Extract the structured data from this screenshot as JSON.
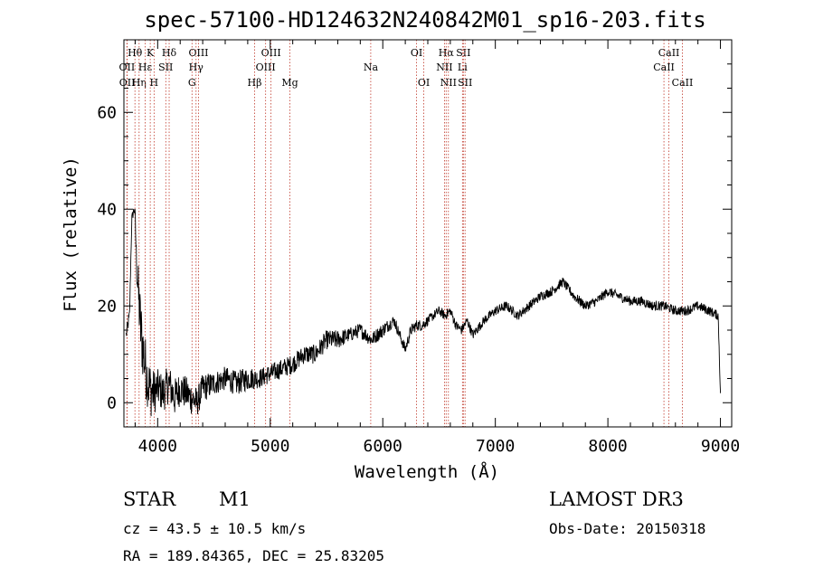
{
  "chart_data": {
    "type": "line",
    "title": "spec-57100-HD124632N240842M01_sp16-203.fits",
    "xlabel": "Wavelength (Å)",
    "ylabel": "Flux (relative)",
    "xlim": [
      3700,
      9100
    ],
    "ylim": [
      -5,
      75
    ],
    "xticks": [
      4000,
      5000,
      6000,
      7000,
      8000,
      9000
    ],
    "yticks": [
      0,
      20,
      40,
      60
    ],
    "series": [
      {
        "name": "flux",
        "x": [
          3720,
          3750,
          3770,
          3790,
          3800,
          3810,
          3830,
          3850,
          3870,
          3900,
          3930,
          3960,
          4000,
          4050,
          4100,
          4150,
          4200,
          4250,
          4300,
          4350,
          4400,
          4500,
          4600,
          4700,
          4800,
          4900,
          5000,
          5100,
          5200,
          5300,
          5400,
          5500,
          5600,
          5700,
          5800,
          5900,
          6000,
          6100,
          6150,
          6200,
          6250,
          6300,
          6350,
          6400,
          6450,
          6500,
          6550,
          6600,
          6650,
          6700,
          6750,
          6800,
          6900,
          7000,
          7100,
          7200,
          7300,
          7400,
          7500,
          7600,
          7700,
          7800,
          7900,
          8000,
          8100,
          8200,
          8300,
          8400,
          8500,
          8600,
          8700,
          8800,
          8900,
          8980,
          9000
        ],
        "y": [
          14,
          18,
          38,
          40,
          39,
          30,
          22,
          15,
          11,
          6,
          3,
          2,
          3,
          2,
          4,
          1,
          3,
          2,
          1,
          0,
          3,
          4,
          5,
          4,
          5,
          5,
          6,
          7,
          8,
          10,
          10,
          13,
          13,
          14,
          15,
          13,
          15,
          17,
          14,
          11,
          15,
          16,
          16,
          17,
          18,
          19,
          18,
          19,
          16,
          15,
          17,
          14,
          17,
          19,
          20,
          18,
          20,
          22,
          23,
          25,
          22,
          20,
          21,
          23,
          22,
          21,
          21,
          20,
          20,
          19,
          19,
          20,
          19,
          18,
          2
        ],
        "noise": [
          1.5,
          1.5,
          1,
          1,
          1,
          4,
          6,
          7,
          7,
          6,
          6,
          5,
          4,
          4,
          4,
          4,
          3.5,
          3.5,
          3.5,
          3,
          3,
          2.5,
          2.5,
          2.5,
          2.5,
          2,
          2,
          2,
          2,
          2,
          2,
          2,
          2,
          1.5,
          1.5,
          1.5,
          1.5,
          1.2,
          1.2,
          1.2,
          1.2,
          1.2,
          1.2,
          1,
          1,
          1,
          1,
          1,
          1,
          1,
          1,
          1,
          1,
          1,
          1,
          1,
          1,
          1,
          1,
          1,
          1,
          1,
          1,
          1,
          1,
          1,
          1,
          1,
          1,
          1,
          1,
          1,
          1,
          1,
          1
        ]
      }
    ],
    "spectral_lines": [
      {
        "label": "Hθ",
        "wavelength": 3798,
        "row": 0
      },
      {
        "label": "OII",
        "wavelength": 3727,
        "row": 1
      },
      {
        "label": "OII",
        "wavelength": 3729,
        "row": 2
      },
      {
        "label": "Hη",
        "wavelength": 3835,
        "row": 2
      },
      {
        "label": "K",
        "wavelength": 3934,
        "row": 0
      },
      {
        "label": "Hε",
        "wavelength": 3889,
        "row": 1
      },
      {
        "label": "H",
        "wavelength": 3968,
        "row": 2
      },
      {
        "label": "SII",
        "wavelength": 4072,
        "row": 1
      },
      {
        "label": "Hδ",
        "wavelength": 4102,
        "row": 0
      },
      {
        "label": "OIII",
        "wavelength": 4363,
        "row": 0
      },
      {
        "label": "Hγ",
        "wavelength": 4341,
        "row": 1
      },
      {
        "label": "G",
        "wavelength": 4305,
        "row": 2
      },
      {
        "label": "Hβ",
        "wavelength": 4861,
        "row": 2
      },
      {
        "label": "OIII",
        "wavelength": 5007,
        "row": 0
      },
      {
        "label": "OIII",
        "wavelength": 4959,
        "row": 1
      },
      {
        "label": "Mg",
        "wavelength": 5175,
        "row": 2
      },
      {
        "label": "Na",
        "wavelength": 5893,
        "row": 1
      },
      {
        "label": "OI",
        "wavelength": 6300,
        "row": 0
      },
      {
        "label": "OI",
        "wavelength": 6364,
        "row": 2
      },
      {
        "label": "Hα",
        "wavelength": 6563,
        "row": 0
      },
      {
        "label": "NII",
        "wavelength": 6548,
        "row": 1
      },
      {
        "label": "NII",
        "wavelength": 6583,
        "row": 2
      },
      {
        "label": "SII",
        "wavelength": 6716,
        "row": 0
      },
      {
        "label": "Li",
        "wavelength": 6708,
        "row": 1
      },
      {
        "label": "SII",
        "wavelength": 6731,
        "row": 2
      },
      {
        "label": "CaII",
        "wavelength": 8542,
        "row": 0
      },
      {
        "label": "CaII",
        "wavelength": 8498,
        "row": 1
      },
      {
        "label": "CaII",
        "wavelength": 8662,
        "row": 2
      }
    ]
  },
  "info": {
    "class": "STAR",
    "subclass": "M1",
    "survey": "LAMOST DR3",
    "redshift": "cz = 43.5 ± 10.5 km/s",
    "obs_date": "Obs-Date: 20150318",
    "coords": "RA = 189.84365, DEC =  25.83205"
  },
  "colors": {
    "line_marker": "#c0392b",
    "trace": "#000000"
  }
}
